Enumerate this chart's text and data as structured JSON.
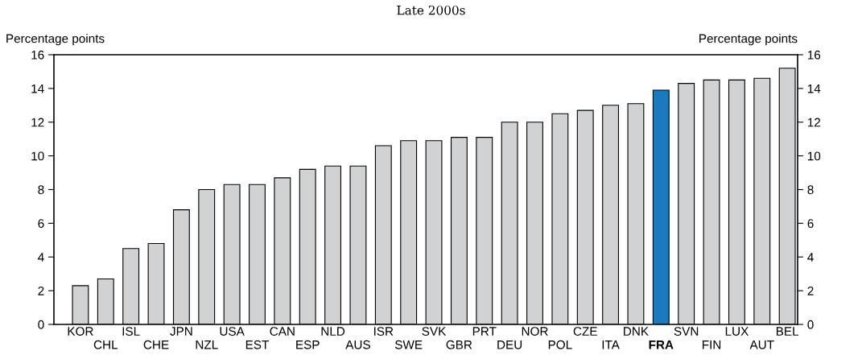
{
  "chart_data": {
    "type": "bar",
    "title": "Late 2000s",
    "ylabel": "Percentage points",
    "y2label": "Percentage points",
    "categories": [
      "KOR",
      "CHL",
      "ISL",
      "CHE",
      "JPN",
      "NZL",
      "USA",
      "EST",
      "CAN",
      "ESP",
      "NLD",
      "AUS",
      "ISR",
      "SWE",
      "SVK",
      "GBR",
      "PRT",
      "DEU",
      "NOR",
      "POL",
      "CZE",
      "ITA",
      "DNK",
      "FRA",
      "SVN",
      "FIN",
      "LUX",
      "AUT",
      "BEL"
    ],
    "values": [
      2.3,
      2.7,
      4.5,
      4.8,
      6.8,
      8.0,
      8.3,
      8.3,
      8.7,
      9.2,
      9.4,
      9.4,
      10.6,
      10.9,
      10.9,
      11.1,
      11.1,
      12.0,
      12.0,
      12.5,
      12.7,
      13.0,
      13.1,
      13.9,
      14.3,
      14.5,
      14.5,
      14.6,
      15.2
    ],
    "colors": [
      "#d0d2d3",
      "#d0d2d3",
      "#d0d2d3",
      "#d0d2d3",
      "#d0d2d3",
      "#d0d2d3",
      "#d0d2d3",
      "#d0d2d3",
      "#d0d2d3",
      "#d0d2d3",
      "#d0d2d3",
      "#d0d2d3",
      "#d0d2d3",
      "#d0d2d3",
      "#d0d2d3",
      "#d0d2d3",
      "#d0d2d3",
      "#d0d2d3",
      "#d0d2d3",
      "#d0d2d3",
      "#d0d2d3",
      "#d0d2d3",
      "#d0d2d3",
      "#1a7abf",
      "#d0d2d3",
      "#d0d2d3",
      "#d0d2d3",
      "#d0d2d3",
      "#d0d2d3"
    ],
    "ylim": [
      0,
      16
    ],
    "yticks": [
      0,
      2,
      4,
      6,
      8,
      10,
      12,
      14,
      16
    ],
    "y2lim": [
      0,
      16
    ],
    "y2ticks": [
      0,
      2,
      4,
      6,
      8,
      10,
      12,
      14,
      16
    ],
    "grid": false,
    "legend": false
  }
}
